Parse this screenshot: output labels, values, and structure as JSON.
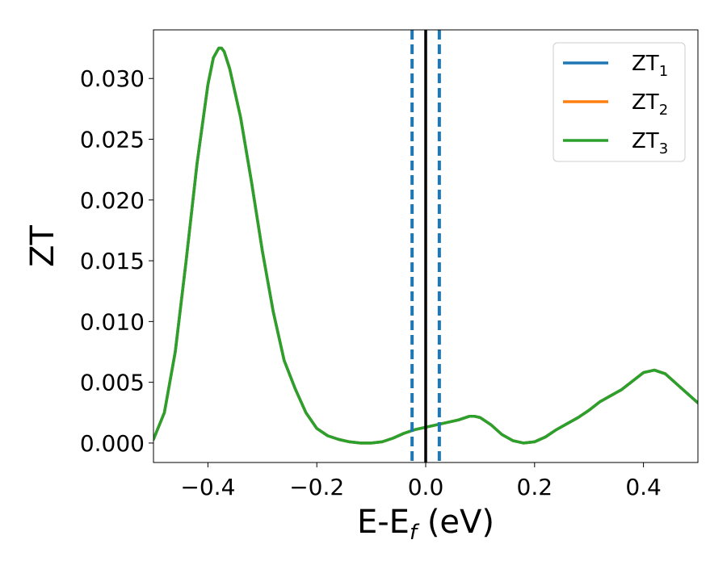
{
  "chart_data": {
    "type": "line",
    "xlabel": "E-E",
    "xlabel_sub": "f",
    "xlabel_unit": " (eV)",
    "ylabel": "ZT",
    "xlim": [
      -0.5,
      0.5
    ],
    "ylim": [
      -0.0016,
      0.034
    ],
    "xticks": [
      -0.4,
      -0.2,
      0.0,
      0.2,
      0.4
    ],
    "xtick_labels": [
      "−0.4",
      "−0.2",
      "0.0",
      "0.2",
      "0.4"
    ],
    "yticks": [
      0.0,
      0.005,
      0.01,
      0.015,
      0.02,
      0.025,
      0.03
    ],
    "ytick_labels": [
      "0.000",
      "0.005",
      "0.010",
      "0.015",
      "0.020",
      "0.025",
      "0.030"
    ],
    "grid": false,
    "legend_position": "top-right",
    "series": [
      {
        "name": "ZT",
        "sub": "1",
        "color": "#1f77b4",
        "x": [
          -0.5,
          -0.48,
          -0.46,
          -0.44,
          -0.42,
          -0.4,
          -0.39,
          -0.38,
          -0.375,
          -0.37,
          -0.36,
          -0.34,
          -0.32,
          -0.3,
          -0.28,
          -0.26,
          -0.24,
          -0.22,
          -0.2,
          -0.18,
          -0.16,
          -0.14,
          -0.12,
          -0.1,
          -0.08,
          -0.06,
          -0.04,
          -0.02,
          0.0,
          0.02,
          0.04,
          0.06,
          0.08,
          0.09,
          0.1,
          0.12,
          0.14,
          0.16,
          0.18,
          0.2,
          0.22,
          0.24,
          0.26,
          0.28,
          0.3,
          0.32,
          0.34,
          0.36,
          0.38,
          0.4,
          0.42,
          0.44,
          0.46,
          0.48,
          0.5
        ],
        "y": [
          0.0003,
          0.0025,
          0.0075,
          0.015,
          0.023,
          0.0295,
          0.0317,
          0.0325,
          0.0325,
          0.0322,
          0.0308,
          0.0268,
          0.0215,
          0.0158,
          0.0108,
          0.0068,
          0.0045,
          0.0025,
          0.0012,
          0.0006,
          0.0003,
          0.0001,
          0.0,
          0.0,
          0.0001,
          0.0004,
          0.0008,
          0.0011,
          0.0013,
          0.0015,
          0.0017,
          0.0019,
          0.0022,
          0.0022,
          0.0021,
          0.0015,
          0.0007,
          0.0002,
          0.0,
          0.0001,
          0.0005,
          0.0011,
          0.0016,
          0.0021,
          0.0027,
          0.0034,
          0.0039,
          0.0044,
          0.0051,
          0.0058,
          0.006,
          0.0057,
          0.0049,
          0.0041,
          0.0033
        ]
      },
      {
        "name": "ZT",
        "sub": "2",
        "color": "#ff7f0e",
        "x": [
          -0.5,
          -0.48,
          -0.46,
          -0.44,
          -0.42,
          -0.4,
          -0.39,
          -0.38,
          -0.375,
          -0.37,
          -0.36,
          -0.34,
          -0.32,
          -0.3,
          -0.28,
          -0.26,
          -0.24,
          -0.22,
          -0.2,
          -0.18,
          -0.16,
          -0.14,
          -0.12,
          -0.1,
          -0.08,
          -0.06,
          -0.04,
          -0.02,
          0.0,
          0.02,
          0.04,
          0.06,
          0.08,
          0.09,
          0.1,
          0.12,
          0.14,
          0.16,
          0.18,
          0.2,
          0.22,
          0.24,
          0.26,
          0.28,
          0.3,
          0.32,
          0.34,
          0.36,
          0.38,
          0.4,
          0.42,
          0.44,
          0.46,
          0.48,
          0.5
        ],
        "y": [
          0.0003,
          0.0025,
          0.0075,
          0.015,
          0.023,
          0.0295,
          0.0317,
          0.0325,
          0.0325,
          0.0322,
          0.0308,
          0.0268,
          0.0215,
          0.0158,
          0.0108,
          0.0068,
          0.0045,
          0.0025,
          0.0012,
          0.0006,
          0.0003,
          0.0001,
          0.0,
          0.0,
          0.0001,
          0.0004,
          0.0008,
          0.0011,
          0.0013,
          0.0015,
          0.0017,
          0.0019,
          0.0022,
          0.0022,
          0.0021,
          0.0015,
          0.0007,
          0.0002,
          0.0,
          0.0001,
          0.0005,
          0.0011,
          0.0016,
          0.0021,
          0.0027,
          0.0034,
          0.0039,
          0.0044,
          0.0051,
          0.0058,
          0.006,
          0.0057,
          0.0049,
          0.0041,
          0.0033
        ]
      },
      {
        "name": "ZT",
        "sub": "3",
        "color": "#2ca02c",
        "x": [
          -0.5,
          -0.48,
          -0.46,
          -0.44,
          -0.42,
          -0.4,
          -0.39,
          -0.38,
          -0.375,
          -0.37,
          -0.36,
          -0.34,
          -0.32,
          -0.3,
          -0.28,
          -0.26,
          -0.24,
          -0.22,
          -0.2,
          -0.18,
          -0.16,
          -0.14,
          -0.12,
          -0.1,
          -0.08,
          -0.06,
          -0.04,
          -0.02,
          0.0,
          0.02,
          0.04,
          0.06,
          0.08,
          0.09,
          0.1,
          0.12,
          0.14,
          0.16,
          0.18,
          0.2,
          0.22,
          0.24,
          0.26,
          0.28,
          0.3,
          0.32,
          0.34,
          0.36,
          0.38,
          0.4,
          0.42,
          0.44,
          0.46,
          0.48,
          0.5
        ],
        "y": [
          0.0003,
          0.0025,
          0.0075,
          0.015,
          0.023,
          0.0295,
          0.0317,
          0.0325,
          0.0325,
          0.0322,
          0.0308,
          0.0268,
          0.0215,
          0.0158,
          0.0108,
          0.0068,
          0.0045,
          0.0025,
          0.0012,
          0.0006,
          0.0003,
          0.0001,
          0.0,
          0.0,
          0.0001,
          0.0004,
          0.0008,
          0.0011,
          0.0013,
          0.0015,
          0.0017,
          0.0019,
          0.0022,
          0.0022,
          0.0021,
          0.0015,
          0.0007,
          0.0002,
          0.0,
          0.0001,
          0.0005,
          0.0011,
          0.0016,
          0.0021,
          0.0027,
          0.0034,
          0.0039,
          0.0044,
          0.0051,
          0.0058,
          0.006,
          0.0057,
          0.0049,
          0.0041,
          0.0033
        ]
      }
    ],
    "vlines": [
      {
        "x": -0.025,
        "style": "dashed",
        "color": "#1f77b4"
      },
      {
        "x": 0.0,
        "style": "solid",
        "color": "#000000"
      },
      {
        "x": 0.025,
        "style": "dashed",
        "color": "#1f77b4"
      }
    ]
  }
}
